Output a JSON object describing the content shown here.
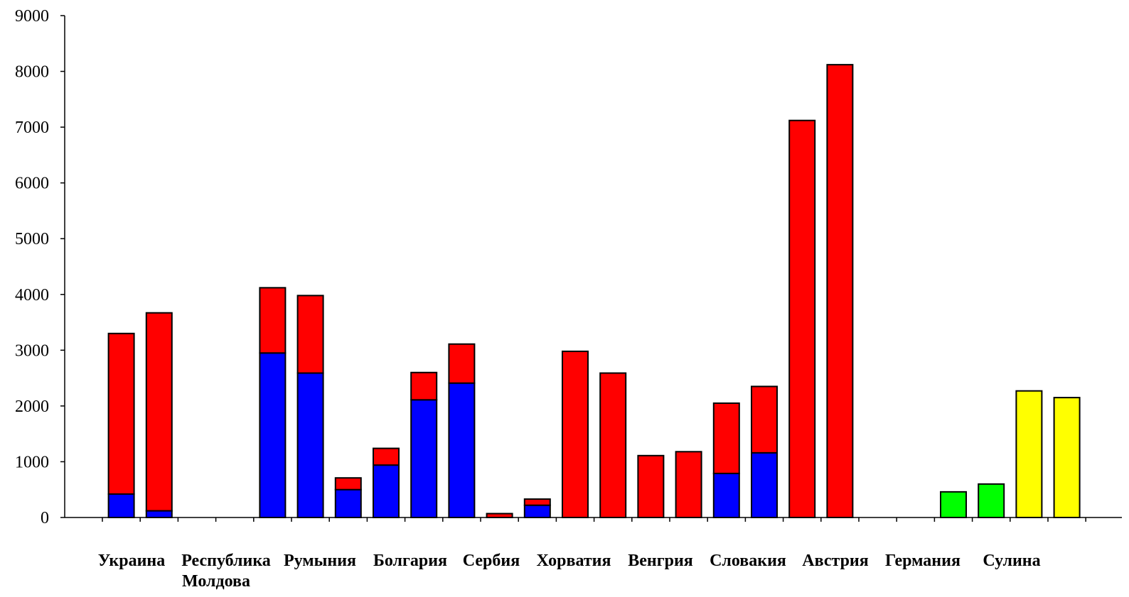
{
  "chart_data": {
    "type": "bar",
    "stacked": true,
    "categories": [
      "Украина",
      "Республика Молдова",
      "Румыния",
      "Болгария",
      "Сербия",
      "Хорватия",
      "Венгрия",
      "Словакия",
      "Австрия",
      "Германия",
      "Сулина"
    ],
    "bars_per_category": 2,
    "bars": [
      {
        "category": "Украина",
        "blue": 420,
        "red": 2880
      },
      {
        "category": "Украина",
        "blue": 120,
        "red": 3550
      },
      {
        "category": "Республика Молдова",
        "blue": 0,
        "red": 0
      },
      {
        "category": "Республика Молдова",
        "blue": 0,
        "red": 0
      },
      {
        "category": "Румыния",
        "blue": 2950,
        "red": 1170
      },
      {
        "category": "Румыния",
        "blue": 2590,
        "red": 1390
      },
      {
        "category": "Румыния",
        "blue": 500,
        "red": 210
      },
      {
        "category": "Болгария",
        "blue": 940,
        "red": 300
      },
      {
        "category": "Болгария",
        "blue": 2110,
        "red": 490
      },
      {
        "category": "Болгария",
        "blue": 2410,
        "red": 700
      },
      {
        "category": "Сербия",
        "blue": 0,
        "red": 70
      },
      {
        "category": "Сербия",
        "blue": 220,
        "red": 110
      },
      {
        "category": "Хорватия",
        "blue": 0,
        "red": 2980
      },
      {
        "category": "Хорватия",
        "blue": 0,
        "red": 2590
      },
      {
        "category": "Венгрия",
        "blue": 0,
        "red": 1110
      },
      {
        "category": "Венгрия",
        "blue": 0,
        "red": 1180
      },
      {
        "category": "Словакия",
        "blue": 790,
        "red": 1260
      },
      {
        "category": "Словакия",
        "blue": 1160,
        "red": 1190
      },
      {
        "category": "Австрия",
        "blue": 0,
        "red": 7120
      },
      {
        "category": "Австрия",
        "blue": 0,
        "red": 8120
      },
      {
        "category": "Германия",
        "blue": 0,
        "red": 0
      },
      {
        "category": "Германия",
        "blue": 0,
        "red": 0
      },
      {
        "category": "Германия",
        "green": 460
      },
      {
        "category": "Сулина",
        "green": 600
      },
      {
        "category": "Сулина",
        "yellow": 2270
      },
      {
        "category": "Сулина",
        "yellow": 2150
      }
    ],
    "ylim": [
      0,
      9000
    ],
    "yticks": [
      "0",
      "1000",
      "2000",
      "3000",
      "4000",
      "5000",
      "6000",
      "7000",
      "8000",
      "9000"
    ],
    "grid": false,
    "legend": "none",
    "colors": {
      "blue": "#0000ff",
      "red": "#ff0000",
      "green": "#00ff00",
      "yellow": "#ffff00",
      "outline": "#000000"
    }
  },
  "category_labels": [
    {
      "line1": "Украина",
      "line2": ""
    },
    {
      "line1": "Республика",
      "line2": "Молдова"
    },
    {
      "line1": "Румыния",
      "line2": ""
    },
    {
      "line1": "Болгария",
      "line2": ""
    },
    {
      "line1": "Сербия",
      "line2": ""
    },
    {
      "line1": "Хорватия",
      "line2": ""
    },
    {
      "line1": "Венгрия",
      "line2": ""
    },
    {
      "line1": "Словакия",
      "line2": ""
    },
    {
      "line1": "Австрия",
      "line2": ""
    },
    {
      "line1": "Германия",
      "line2": ""
    },
    {
      "line1": "Сулина",
      "line2": ""
    }
  ]
}
